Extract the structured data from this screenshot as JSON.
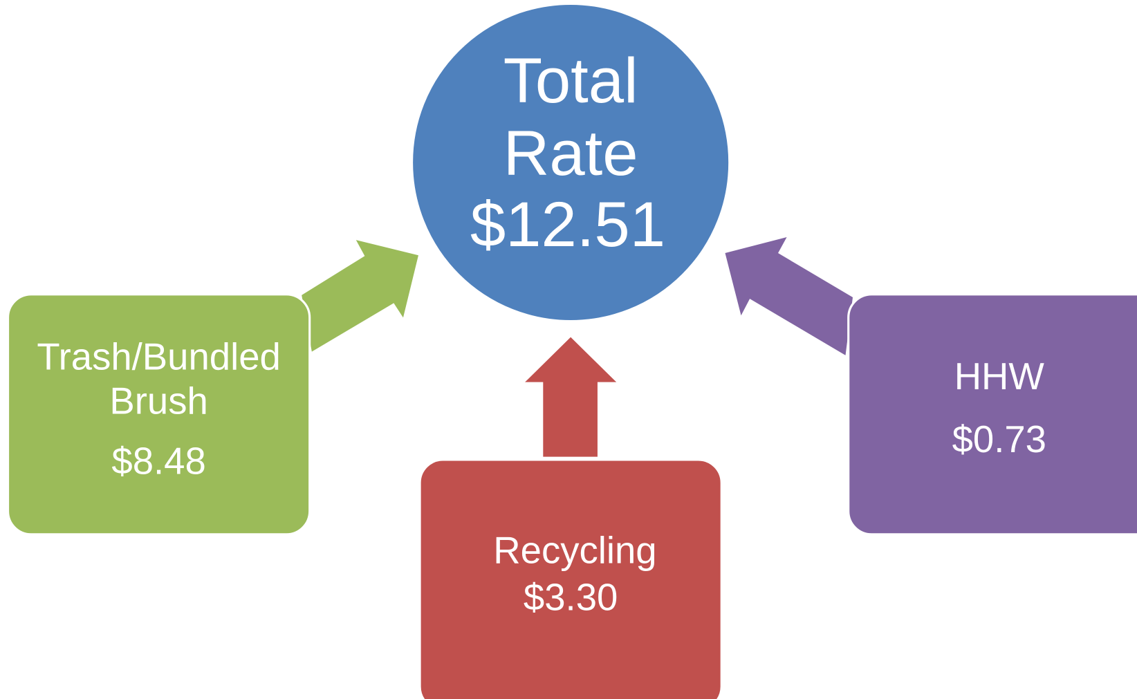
{
  "center": {
    "label": [
      "Total",
      "Rate"
    ],
    "value": "$12.51"
  },
  "nodes": [
    {
      "label": [
        "Trash/Bundled",
        "Brush"
      ],
      "value": "$8.48"
    },
    {
      "label": [
        "Recycling"
      ],
      "value": "$3.30"
    },
    {
      "label": [
        "HHW"
      ],
      "value": "$0.73"
    }
  ]
}
